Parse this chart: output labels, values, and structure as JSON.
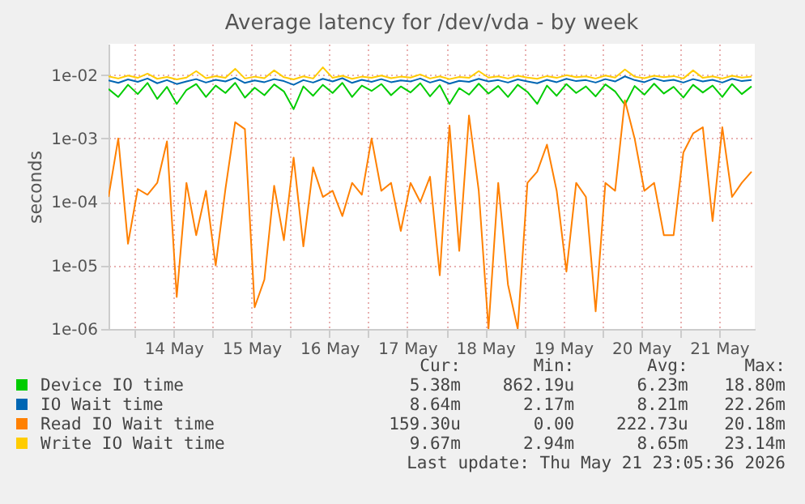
{
  "chart_data": {
    "type": "line",
    "title": "Average latency for /dev/vda - by week",
    "ylabel": "seconds",
    "x": [
      "2026-05-13T16:00",
      "2026-05-13T19:00",
      "2026-05-13T22:00",
      "2026-05-14T01:00",
      "2026-05-14T04:00",
      "2026-05-14T07:00",
      "2026-05-14T10:00",
      "2026-05-14T13:00",
      "2026-05-14T16:00",
      "2026-05-14T19:00",
      "2026-05-14T22:00",
      "2026-05-15T01:00",
      "2026-05-15T04:00",
      "2026-05-15T07:00",
      "2026-05-15T10:00",
      "2026-05-15T13:00",
      "2026-05-15T16:00",
      "2026-05-15T19:00",
      "2026-05-15T22:00",
      "2026-05-16T01:00",
      "2026-05-16T04:00",
      "2026-05-16T07:00",
      "2026-05-16T10:00",
      "2026-05-16T13:00",
      "2026-05-16T16:00",
      "2026-05-16T19:00",
      "2026-05-16T22:00",
      "2026-05-17T01:00",
      "2026-05-17T04:00",
      "2026-05-17T07:00",
      "2026-05-17T10:00",
      "2026-05-17T13:00",
      "2026-05-17T16:00",
      "2026-05-17T19:00",
      "2026-05-17T22:00",
      "2026-05-18T01:00",
      "2026-05-18T04:00",
      "2026-05-18T07:00",
      "2026-05-18T10:00",
      "2026-05-18T13:00",
      "2026-05-18T16:00",
      "2026-05-18T19:00",
      "2026-05-18T22:00",
      "2026-05-19T01:00",
      "2026-05-19T04:00",
      "2026-05-19T07:00",
      "2026-05-19T10:00",
      "2026-05-19T13:00",
      "2026-05-19T16:00",
      "2026-05-19T19:00",
      "2026-05-19T22:00",
      "2026-05-20T01:00",
      "2026-05-20T04:00",
      "2026-05-20T07:00",
      "2026-05-20T10:00",
      "2026-05-20T13:00",
      "2026-05-20T16:00",
      "2026-05-20T19:00",
      "2026-05-20T22:00",
      "2026-05-21T01:00",
      "2026-05-21T04:00",
      "2026-05-21T07:00",
      "2026-05-21T10:00",
      "2026-05-21T13:00",
      "2026-05-21T16:00",
      "2026-05-21T19:00",
      "2026-05-21T22:00"
    ],
    "series": [
      {
        "name": "Device IO time",
        "color": "#00cc00",
        "values": [
          0.006,
          0.0045,
          0.007,
          0.005,
          0.0075,
          0.0042,
          0.0065,
          0.0035,
          0.0058,
          0.0072,
          0.0045,
          0.0068,
          0.0052,
          0.0075,
          0.0044,
          0.0063,
          0.0048,
          0.0071,
          0.0055,
          0.0029,
          0.0066,
          0.0047,
          0.007,
          0.0052,
          0.0075,
          0.0045,
          0.0068,
          0.0056,
          0.0072,
          0.0048,
          0.0066,
          0.0053,
          0.0074,
          0.0046,
          0.0069,
          0.0035,
          0.0062,
          0.0049,
          0.0073,
          0.0051,
          0.0067,
          0.0045,
          0.007,
          0.0054,
          0.0035,
          0.0068,
          0.0047,
          0.0072,
          0.0052,
          0.0066,
          0.0046,
          0.0071,
          0.0055,
          0.0034,
          0.0067,
          0.0049,
          0.0073,
          0.0051,
          0.0065,
          0.0044,
          0.007,
          0.0053,
          0.0068,
          0.0045,
          0.0072,
          0.005,
          0.0066
        ]
      },
      {
        "name": "IO Wait time",
        "color": "#0066b3",
        "values": [
          0.0082,
          0.0075,
          0.0085,
          0.0078,
          0.0088,
          0.0074,
          0.0083,
          0.0072,
          0.0079,
          0.0086,
          0.0076,
          0.0084,
          0.0079,
          0.009,
          0.0075,
          0.0082,
          0.0077,
          0.0086,
          0.008,
          0.007,
          0.0083,
          0.0076,
          0.0087,
          0.0079,
          0.0089,
          0.0075,
          0.0084,
          0.0078,
          0.0086,
          0.0077,
          0.0082,
          0.0079,
          0.0088,
          0.0076,
          0.0084,
          0.0073,
          0.0081,
          0.0078,
          0.0087,
          0.0079,
          0.0083,
          0.0076,
          0.0085,
          0.0079,
          0.0074,
          0.0084,
          0.0077,
          0.0087,
          0.008,
          0.0083,
          0.0076,
          0.0086,
          0.0079,
          0.0095,
          0.0083,
          0.0077,
          0.0088,
          0.008,
          0.0084,
          0.0076,
          0.0086,
          0.0079,
          0.0084,
          0.0076,
          0.0087,
          0.008,
          0.0083
        ]
      },
      {
        "name": "Read IO Wait time",
        "color": "#ff8000",
        "values": [
          0.00012,
          0.001,
          2.2e-05,
          0.00016,
          0.00013,
          0.0002,
          0.0009,
          3.2e-06,
          0.0002,
          3e-05,
          0.00015,
          1e-05,
          0.00016,
          0.0018,
          0.0014,
          2.2e-06,
          6e-06,
          0.00018,
          2.5e-05,
          0.0005,
          2e-05,
          0.00035,
          0.00012,
          0.00015,
          6e-05,
          0.0002,
          0.00013,
          0.001,
          0.00015,
          0.0002,
          3.5e-05,
          0.0002,
          0.0001,
          0.00025,
          7e-06,
          0.0016,
          1.7e-05,
          0.0023,
          0.00015,
          1e-06,
          0.0002,
          5e-06,
          1e-06,
          0.0002,
          0.0003,
          0.0008,
          0.00015,
          8e-06,
          0.0002,
          0.00012,
          1.9e-06,
          0.0002,
          0.00015,
          0.004,
          0.001,
          0.00015,
          0.0002,
          3e-05,
          3e-05,
          0.0006,
          0.0012,
          0.0015,
          5e-05,
          0.0015,
          0.00012,
          0.0002,
          0.0003
        ]
      },
      {
        "name": "Write IO Wait time",
        "color": "#ffcc00",
        "values": [
          0.0095,
          0.0088,
          0.0098,
          0.009,
          0.0105,
          0.0087,
          0.0093,
          0.0085,
          0.0091,
          0.0115,
          0.0089,
          0.0096,
          0.009,
          0.0125,
          0.0088,
          0.0094,
          0.0089,
          0.0118,
          0.0092,
          0.0085,
          0.0095,
          0.0088,
          0.0132,
          0.009,
          0.0097,
          0.0087,
          0.0094,
          0.009,
          0.0098,
          0.0089,
          0.0094,
          0.0091,
          0.0102,
          0.0088,
          0.0095,
          0.0086,
          0.0093,
          0.009,
          0.0115,
          0.0091,
          0.0095,
          0.0088,
          0.0097,
          0.0091,
          0.0087,
          0.0096,
          0.009,
          0.0099,
          0.0092,
          0.0095,
          0.0088,
          0.0098,
          0.0091,
          0.0122,
          0.0094,
          0.0089,
          0.0097,
          0.0092,
          0.0096,
          0.0088,
          0.0118,
          0.009,
          0.0095,
          0.0088,
          0.0097,
          0.0091,
          0.0094
        ]
      }
    ],
    "xlim": [
      "2026-05-13T16:00",
      "2026-05-21T23:00"
    ],
    "xticks": [
      {
        "value": "2026-05-14T00:00",
        "label": null
      },
      {
        "value": "2026-05-14T12:00",
        "label": "14 May"
      },
      {
        "value": "2026-05-15T00:00",
        "label": null
      },
      {
        "value": "2026-05-15T12:00",
        "label": "15 May"
      },
      {
        "value": "2026-05-16T00:00",
        "label": null
      },
      {
        "value": "2026-05-16T12:00",
        "label": "16 May"
      },
      {
        "value": "2026-05-17T00:00",
        "label": null
      },
      {
        "value": "2026-05-17T12:00",
        "label": "17 May"
      },
      {
        "value": "2026-05-18T00:00",
        "label": null
      },
      {
        "value": "2026-05-18T12:00",
        "label": "18 May"
      },
      {
        "value": "2026-05-19T00:00",
        "label": null
      },
      {
        "value": "2026-05-19T12:00",
        "label": "19 May"
      },
      {
        "value": "2026-05-20T00:00",
        "label": null
      },
      {
        "value": "2026-05-20T12:00",
        "label": "20 May"
      },
      {
        "value": "2026-05-21T00:00",
        "label": null
      },
      {
        "value": "2026-05-21T12:00",
        "label": "21 May"
      }
    ],
    "ylim": [
      1e-06,
      0.031
    ],
    "yticks": [
      {
        "value": 1e-06,
        "label": "1e-06"
      },
      {
        "value": 1e-05,
        "label": "1e-05"
      },
      {
        "value": 0.0001,
        "label": "1e-04"
      },
      {
        "value": 0.001,
        "label": "1e-03"
      },
      {
        "value": 0.01,
        "label": "1e-02"
      }
    ],
    "log": "y",
    "grid": true,
    "legend": "bottom",
    "annotations": [
      "Cur:",
      "Min:",
      "Avg:",
      "Max:",
      "5.38m",
      "862.19u",
      "6.23m",
      "18.80m",
      "8.64m",
      "2.17m",
      "8.21m",
      "22.26m",
      "159.30u",
      "0.00",
      "222.73u",
      "20.18m",
      "9.67m",
      "2.94m",
      "8.65m",
      "23.14m",
      "Last update: Thu May 21 23:05:36 2026"
    ]
  }
}
